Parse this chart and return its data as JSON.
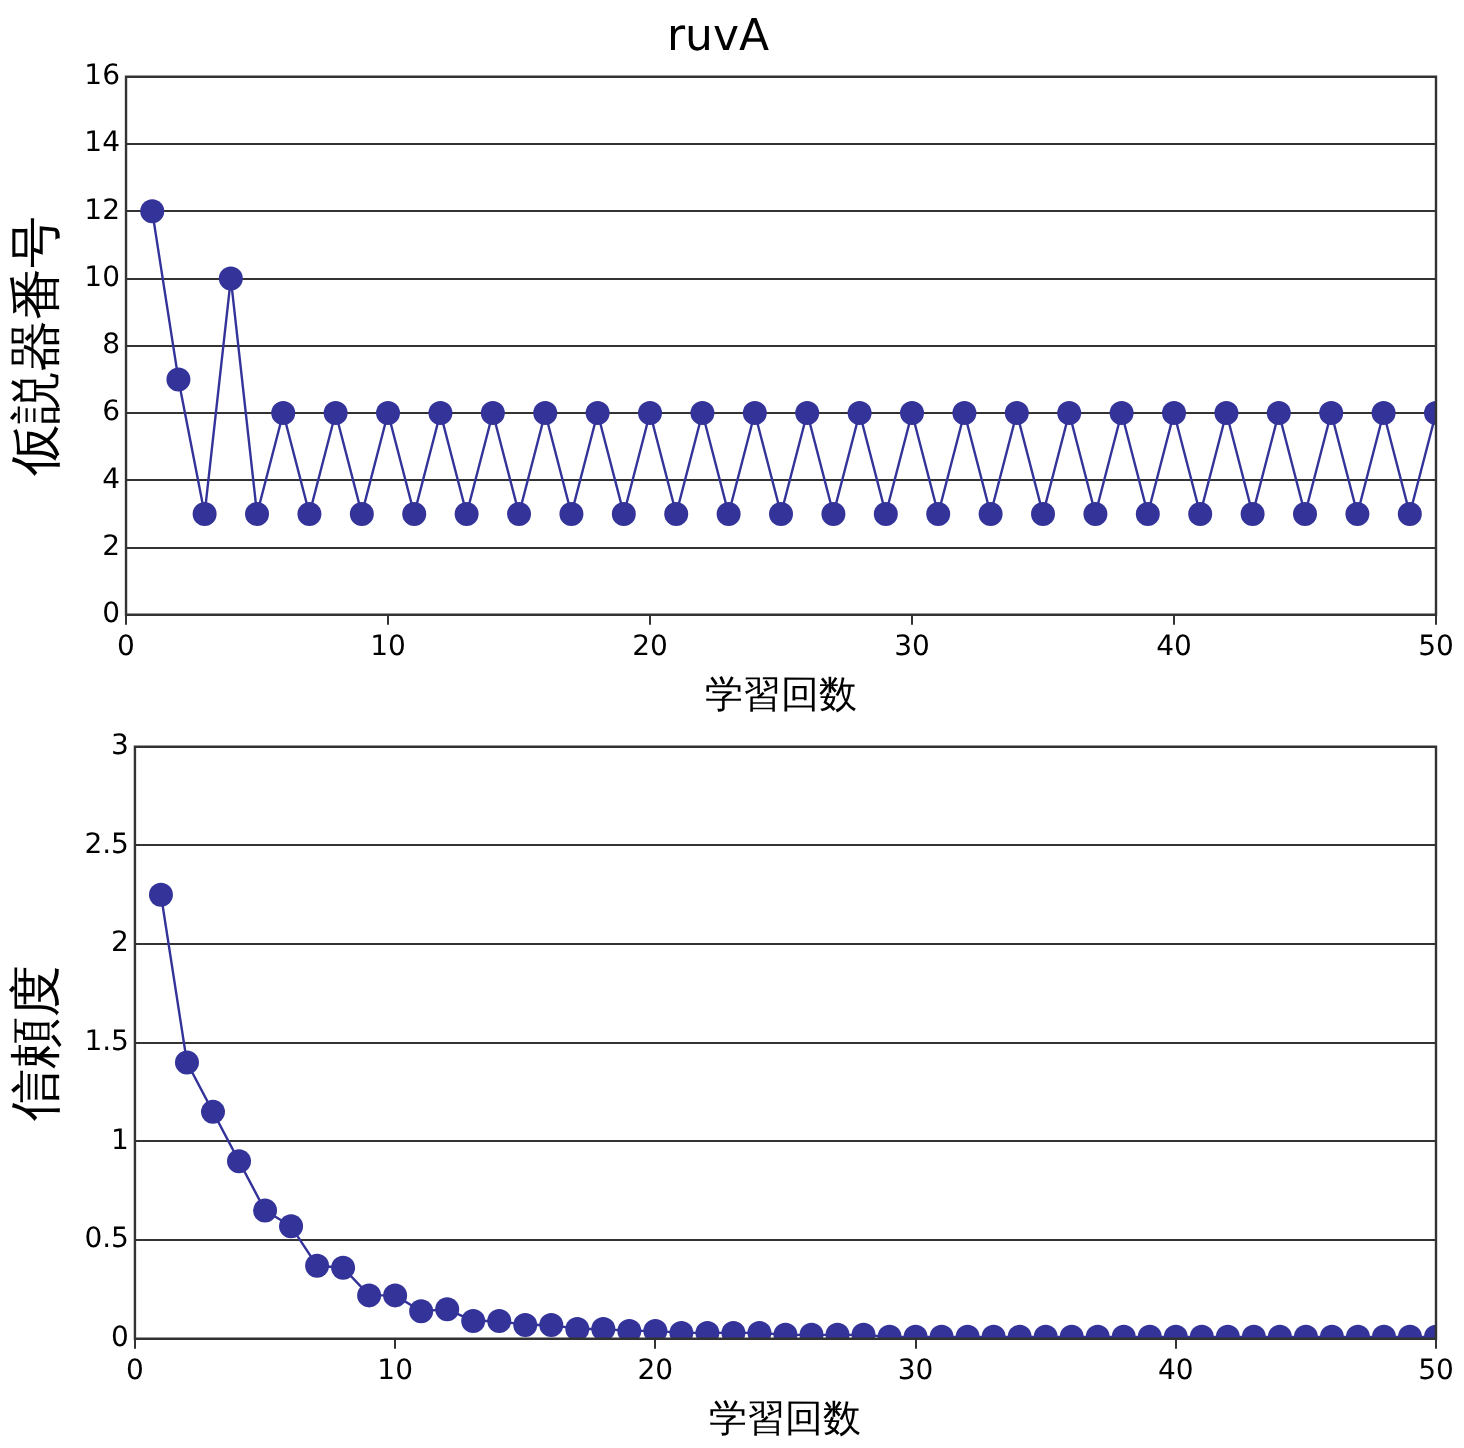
{
  "chart_data": [
    {
      "type": "line",
      "title": "ruvA",
      "xlabel": "学習回数",
      "ylabel": "仮説器番号",
      "marker": "circle",
      "grid": "y",
      "xlim": [
        0,
        50
      ],
      "xticks": [
        0,
        10,
        20,
        30,
        40,
        50
      ],
      "ylim": [
        0,
        16
      ],
      "yticks": [
        0,
        2,
        4,
        6,
        8,
        10,
        12,
        14,
        16
      ],
      "x": [
        1,
        2,
        3,
        4,
        5,
        6,
        7,
        8,
        9,
        10,
        11,
        12,
        13,
        14,
        15,
        16,
        17,
        18,
        19,
        20,
        21,
        22,
        23,
        24,
        25,
        26,
        27,
        28,
        29,
        30,
        31,
        32,
        33,
        34,
        35,
        36,
        37,
        38,
        39,
        40,
        41,
        42,
        43,
        44,
        45,
        46,
        47,
        48,
        49,
        50
      ],
      "series": [
        {
          "color": "#333399",
          "values": [
            12,
            7,
            3,
            10,
            3,
            6,
            3,
            6,
            3,
            6,
            3,
            6,
            3,
            6,
            3,
            6,
            3,
            6,
            3,
            6,
            3,
            6,
            3,
            6,
            3,
            6,
            3,
            6,
            3,
            6,
            3,
            6,
            3,
            6,
            3,
            6,
            3,
            6,
            3,
            6,
            3,
            6,
            3,
            6,
            3,
            6,
            3,
            6,
            3,
            6
          ]
        }
      ]
    },
    {
      "type": "line",
      "xlabel": "学習回数",
      "ylabel": "信頼度",
      "marker": "circle",
      "grid": "y",
      "xlim": [
        0,
        50
      ],
      "xticks": [
        0,
        10,
        20,
        30,
        40,
        50
      ],
      "ylim": [
        0,
        3
      ],
      "yticks": [
        0,
        0.5,
        1,
        1.5,
        2,
        2.5,
        3
      ],
      "x": [
        1,
        2,
        3,
        4,
        5,
        6,
        7,
        8,
        9,
        10,
        11,
        12,
        13,
        14,
        15,
        16,
        17,
        18,
        19,
        20,
        21,
        22,
        23,
        24,
        25,
        26,
        27,
        28,
        29,
        30,
        31,
        32,
        33,
        34,
        35,
        36,
        37,
        38,
        39,
        40,
        41,
        42,
        43,
        44,
        45,
        46,
        47,
        48,
        49,
        50
      ],
      "series": [
        {
          "color": "#333399",
          "values": [
            2.25,
            1.4,
            1.15,
            0.9,
            0.65,
            0.57,
            0.37,
            0.36,
            0.22,
            0.22,
            0.14,
            0.15,
            0.09,
            0.09,
            0.07,
            0.07,
            0.05,
            0.05,
            0.04,
            0.04,
            0.03,
            0.03,
            0.03,
            0.03,
            0.02,
            0.02,
            0.02,
            0.02,
            0.01,
            0.01,
            0.01,
            0.01,
            0.01,
            0.01,
            0.01,
            0.01,
            0.01,
            0.01,
            0.01,
            0.01,
            0.01,
            0.01,
            0.01,
            0.01,
            0.01,
            0.01,
            0.01,
            0.01,
            0.01,
            0.01
          ]
        }
      ]
    }
  ]
}
